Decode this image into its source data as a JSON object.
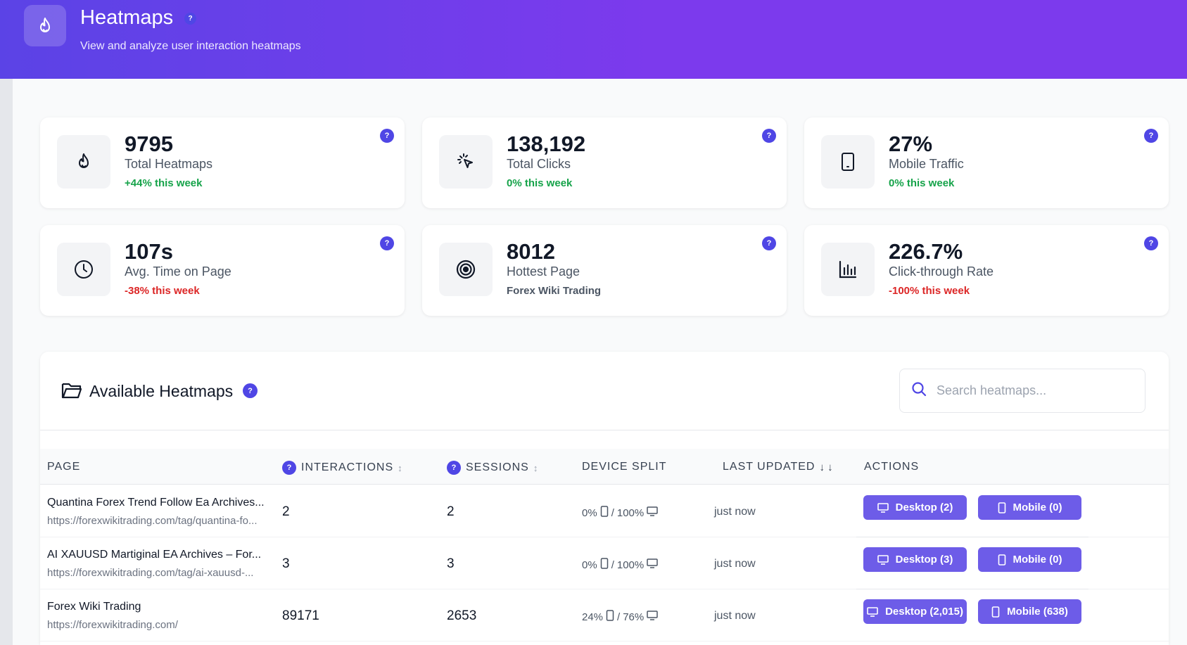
{
  "header": {
    "title": "Heatmaps",
    "subtitle": "View and analyze user interaction heatmaps",
    "help": "?",
    "icon": "flame-icon"
  },
  "stats": [
    {
      "value": "9795",
      "label": "Total Heatmaps",
      "trend": "+44% this week",
      "trend_type": "up",
      "icon": "flame-icon"
    },
    {
      "value": "138,192",
      "label": "Total Clicks",
      "trend": "0% this week",
      "trend_type": "up",
      "icon": "click-icon"
    },
    {
      "value": "27%",
      "label": "Mobile Traffic",
      "trend": "0% this week",
      "trend_type": "up",
      "icon": "mobile-icon"
    },
    {
      "value": "107s",
      "label": "Avg. Time on Page",
      "trend": "-38% this week",
      "trend_type": "down",
      "icon": "clock-icon"
    },
    {
      "value": "8012",
      "label": "Hottest Page",
      "trend": "Forex Wiki Trading",
      "trend_type": "neutral",
      "icon": "target-icon"
    },
    {
      "value": "226.7%",
      "label": "Click-through Rate",
      "trend": "-100% this week",
      "trend_type": "down",
      "icon": "bar-chart-icon"
    }
  ],
  "table": {
    "title": "Available Heatmaps",
    "search_placeholder": "Search heatmaps...",
    "columns": {
      "page": "PAGE",
      "interactions": "INTERACTIONS",
      "sessions": "SESSIONS",
      "device_split": "DEVICE SPLIT",
      "last_updated": "LAST UPDATED",
      "actions": "ACTIONS"
    },
    "rows": [
      {
        "title": "Quantina Forex Trend Follow Ea Archives...",
        "url": "https://forexwikitrading.com/tag/quantina-fo...",
        "interactions": "2",
        "sessions": "2",
        "mobile_pct": "0%",
        "desktop_pct": "100%",
        "updated": "just now",
        "desktop_btn": "Desktop (2)",
        "mobile_btn": "Mobile (0)"
      },
      {
        "title": "AI XAUUSD Martiginal EA Archives – For...",
        "url": "https://forexwikitrading.com/tag/ai-xauusd-...",
        "interactions": "3",
        "sessions": "3",
        "mobile_pct": "0%",
        "desktop_pct": "100%",
        "updated": "just now",
        "desktop_btn": "Desktop (3)",
        "mobile_btn": "Mobile (0)"
      },
      {
        "title": "Forex Wiki Trading",
        "url": "https://forexwikitrading.com/",
        "interactions": "89171",
        "sessions": "2653",
        "mobile_pct": "24%",
        "desktop_pct": "76%",
        "updated": "just now",
        "desktop_btn": "Desktop (2,015)",
        "mobile_btn": "Mobile (638)"
      }
    ]
  },
  "colors": {
    "accent": "#4f46e5",
    "button": "#6d5ce8",
    "header_gradient_start": "#5b43e6",
    "header_gradient_end": "#7c3aed",
    "trend_up": "#16a34a",
    "trend_down": "#dc2626"
  }
}
